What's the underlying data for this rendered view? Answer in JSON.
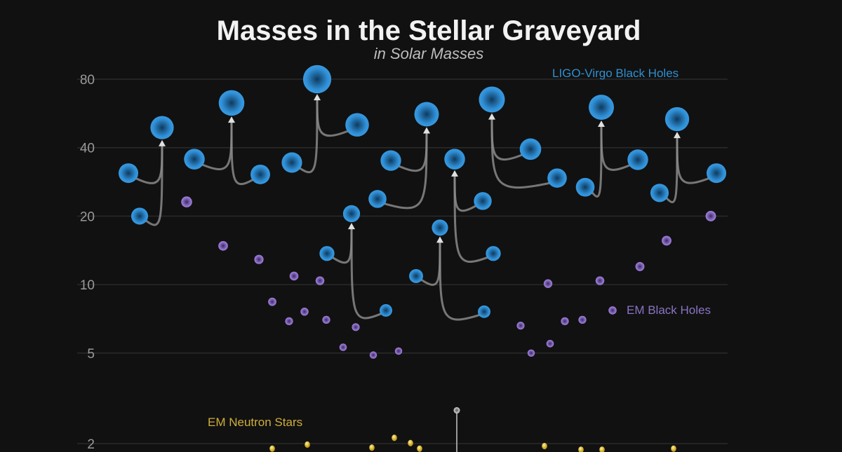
{
  "chart_data": {
    "type": "scatter",
    "title": "Masses in the Stellar Graveyard",
    "subtitle": "in Solar Masses",
    "y_scale": "log",
    "y_ticks": [
      2,
      5,
      10,
      20,
      40,
      80
    ],
    "y_tick_labels": [
      "2",
      "5",
      "10",
      "20",
      "40",
      "80"
    ],
    "ylim": [
      1.75,
      95
    ],
    "grid": true,
    "colors": {
      "background": "#111111",
      "ligo": "#2f8fd6",
      "em_bh": "#8a6cc6",
      "em_ns": "#e3c232",
      "ligo_ns": "#cfcfcf",
      "arrow": "#8a8a8a"
    },
    "ligo_virgo_black_holes": {
      "name": "LIGO-Virgo Black Holes",
      "mergers": [
        {
          "m1": 30.9,
          "m2": 20.0,
          "final": 49.0
        },
        {
          "m1": 35.6,
          "m2": 30.5,
          "final": 62.9
        },
        {
          "m1": 34.4,
          "m2": 50.4,
          "final": 80.0
        },
        {
          "m1": 13.7,
          "m2": 7.7,
          "final": 20.5
        },
        {
          "m1": 23.8,
          "m2": 35.1,
          "final": 56.1
        },
        {
          "m1": 10.9,
          "m2": 7.6,
          "final": 17.8
        },
        {
          "m1": 23.3,
          "m2": 13.7,
          "final": 35.6
        },
        {
          "m1": 39.4,
          "m2": 29.4,
          "final": 65.1
        },
        {
          "m1": 26.8,
          "m2": 35.4,
          "final": 60.2
        },
        {
          "m1": 25.3,
          "m2": 30.9,
          "final": 53.4
        }
      ]
    },
    "em_black_holes": {
      "name": "EM Black Holes",
      "values": [
        23.1,
        14.8,
        12.9,
        8.4,
        6.9,
        10.9,
        7.6,
        10.4,
        7.0,
        5.3,
        6.5,
        4.9,
        5.1,
        6.6,
        5.0,
        10.1,
        5.5,
        6.9,
        7.0,
        10.4,
        7.7,
        12.0,
        15.6,
        20.0
      ]
    },
    "em_neutron_stars": {
      "name": "EM Neutron Stars",
      "values": [
        1.9,
        1.98,
        1.92,
        2.12,
        2.01,
        1.9,
        1.95,
        1.88,
        1.88,
        1.9
      ]
    },
    "ligo_virgo_neutron_star_merger": {
      "final": 2.8
    }
  }
}
